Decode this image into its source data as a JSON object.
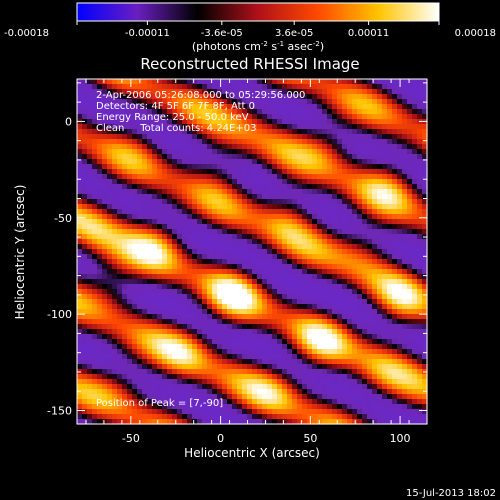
{
  "chart_data": {
    "type": "heatmap",
    "title": "Reconstructed RHESSI Image",
    "xlabel": "Heliocentric X (arcsec)",
    "ylabel": "Heliocentric Y (arcsec)",
    "xlim": [
      -80,
      115
    ],
    "ylim": [
      -157,
      22
    ],
    "x_ticks": [
      -50,
      0,
      50,
      100
    ],
    "y_ticks": [
      0,
      -50,
      -100,
      -150
    ],
    "x_tick_labels": [
      "-50",
      "0",
      "50",
      "100"
    ],
    "y_tick_labels": [
      "0",
      "-50",
      "-100",
      "-150"
    ],
    "colorbar": {
      "range": [
        -0.00018,
        0.00018
      ],
      "ticks": [
        -0.00018,
        -0.00011,
        -3.6e-05,
        3.6e-05,
        0.00011,
        0.00018
      ],
      "tick_labels": [
        "-0.00018",
        "-0.00011",
        "-3.6e-05",
        "3.6e-05",
        "0.00011",
        "0.00018"
      ],
      "units_prefix": "(photons cm",
      "units_exp1": "-2",
      "units_mid1": " s",
      "units_exp2": "-1",
      "units_mid2": " asec",
      "units_exp3": "-2",
      "units_suffix": ")",
      "colors": [
        "#0000ff",
        "#6a1fc0",
        "#000000",
        "#b0101a",
        "#ff4a00",
        "#ffc400",
        "#ffffff"
      ]
    },
    "annotations": [
      "2-Apr-2006 05:26:08.000 to 05:29:56.000",
      "Detectors: 4F 5F 6F 7F 8F, Att 0",
      "Energy Range: 25.0 - 50.0 keV",
      "Clean     Total counts: 4.24E+03"
    ],
    "peak_label": "Position of Peak = [7,-90]",
    "peak_position": [
      7,
      -90
    ],
    "stripe_direction_deg": 24,
    "stripe_period_arcsec": 40,
    "hotspots": [
      {
        "x": 7,
        "y": -90,
        "v": 1.0
      },
      {
        "x": -70,
        "y": -55,
        "v": 0.9
      },
      {
        "x": -35,
        "y": -62,
        "v": 0.85
      },
      {
        "x": -60,
        "y": -82,
        "v": 0.8
      },
      {
        "x": 38,
        "y": -48,
        "v": 0.8
      },
      {
        "x": 60,
        "y": -10,
        "v": 0.75
      },
      {
        "x": 95,
        "y": -30,
        "v": 0.7
      },
      {
        "x": 55,
        "y": -115,
        "v": 0.8
      },
      {
        "x": 100,
        "y": -95,
        "v": 0.75
      },
      {
        "x": 80,
        "y": -65,
        "v": 0.7
      },
      {
        "x": 0,
        "y": -20,
        "v": 0.6
      },
      {
        "x": -20,
        "y": -120,
        "v": 0.85
      },
      {
        "x": 30,
        "y": -140,
        "v": 0.75
      },
      {
        "x": 90,
        "y": -130,
        "v": 0.7
      },
      {
        "x": -55,
        "y": -135,
        "v": 0.6
      },
      {
        "x": 15,
        "y": 5,
        "v": 0.4
      },
      {
        "x": -45,
        "y": -5,
        "v": 0.35
      }
    ]
  },
  "footer": {
    "timestamp": "15-Jul-2013 18:02"
  }
}
